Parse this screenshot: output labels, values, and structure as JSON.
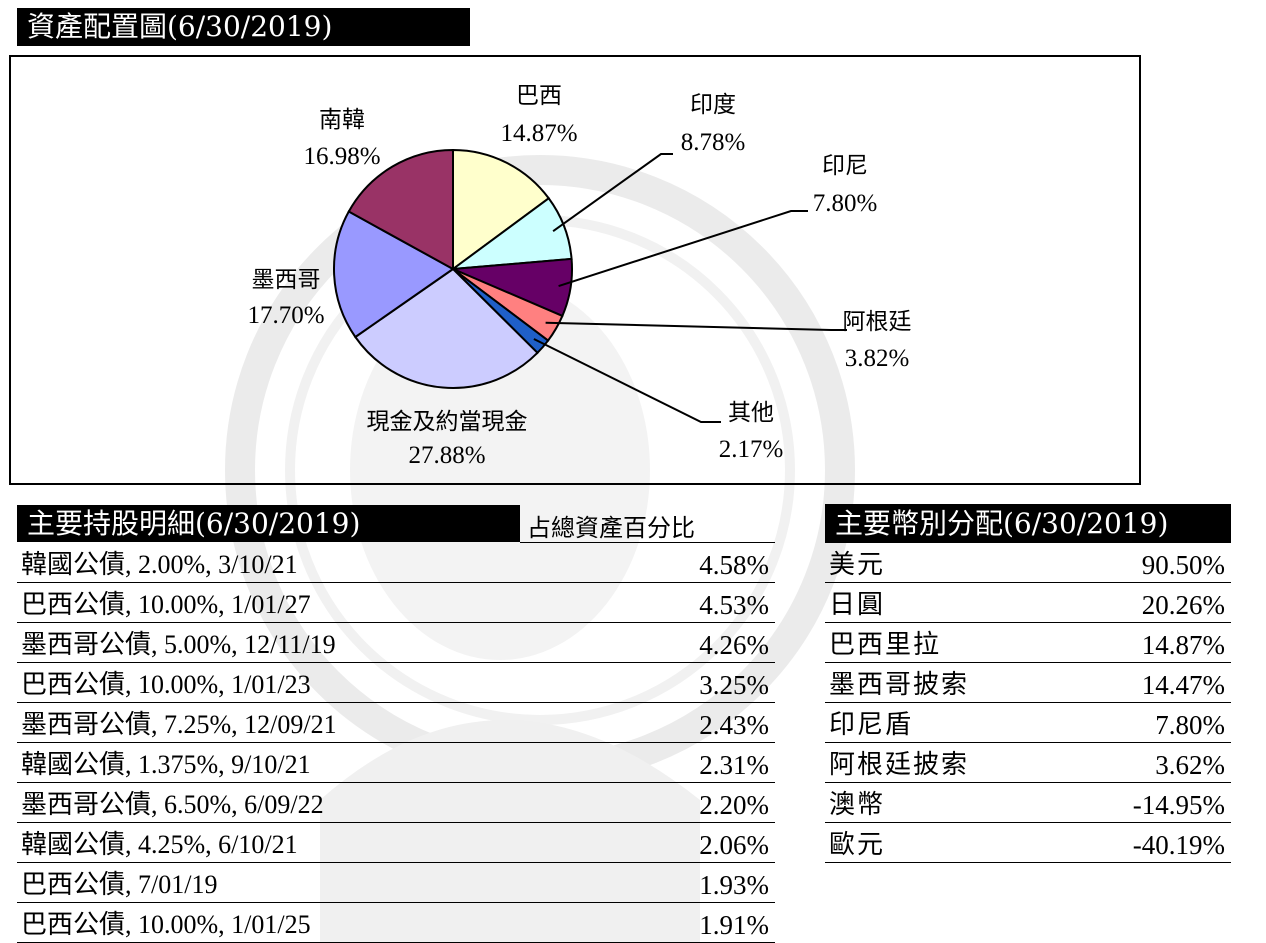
{
  "pie_section": {
    "title": "資產配置圖(6/30/2019)"
  },
  "chart_data": {
    "type": "pie",
    "title": "資產配置圖(6/30/2019)",
    "slices": [
      {
        "label": "巴西",
        "value": 14.87,
        "display": "14.87%",
        "color": "#FFFFCC"
      },
      {
        "label": "印度",
        "value": 8.78,
        "display": "8.78%",
        "color": "#CCFFFF"
      },
      {
        "label": "印尼",
        "value": 7.8,
        "display": "7.80%",
        "color": "#660066"
      },
      {
        "label": "阿根廷",
        "value": 3.82,
        "display": "3.82%",
        "color": "#FF8080"
      },
      {
        "label": "其他",
        "value": 2.17,
        "display": "2.17%",
        "color": "#1F5FC8"
      },
      {
        "label": "現金及約當現金",
        "value": 27.88,
        "display": "27.88%",
        "color": "#CCCCFF"
      },
      {
        "label": "墨西哥",
        "value": 17.7,
        "display": "17.70%",
        "color": "#9999FF"
      },
      {
        "label": "南韓",
        "value": 16.98,
        "display": "16.98%",
        "color": "#993366"
      }
    ]
  },
  "holdings": {
    "title": "主要持股明細(6/30/2019)",
    "column_header": "占總資產百分比",
    "rows": [
      {
        "name": "韓國公債, 2.00%, 3/10/21",
        "value": "4.58%"
      },
      {
        "name": "巴西公債, 10.00%, 1/01/27",
        "value": "4.53%"
      },
      {
        "name": "墨西哥公債, 5.00%, 12/11/19",
        "value": "4.26%"
      },
      {
        "name": "巴西公債, 10.00%, 1/01/23",
        "value": "3.25%"
      },
      {
        "name": "墨西哥公債, 7.25%, 12/09/21",
        "value": "2.43%"
      },
      {
        "name": "韓國公債, 1.375%, 9/10/21",
        "value": "2.31%"
      },
      {
        "name": "墨西哥公債, 6.50%, 6/09/22",
        "value": "2.20%"
      },
      {
        "name": "韓國公債, 4.25%, 6/10/21",
        "value": "2.06%"
      },
      {
        "name": "巴西公債, 7/01/19",
        "value": "1.93%"
      },
      {
        "name": "巴西公債, 10.00%, 1/01/25",
        "value": "1.91%"
      }
    ]
  },
  "currency": {
    "title": "主要幣別分配(6/30/2019)",
    "rows": [
      {
        "name": "美元",
        "value": "90.50%"
      },
      {
        "name": "日圓",
        "value": "20.26%"
      },
      {
        "name": "巴西里拉",
        "value": "14.87%"
      },
      {
        "name": "墨西哥披索",
        "value": "14.47%"
      },
      {
        "name": "印尼盾",
        "value": "7.80%"
      },
      {
        "name": "阿根廷披索",
        "value": "3.62%"
      },
      {
        "name": "澳幣",
        "value": "-14.95%"
      },
      {
        "name": "歐元",
        "value": "-40.19%"
      }
    ]
  }
}
